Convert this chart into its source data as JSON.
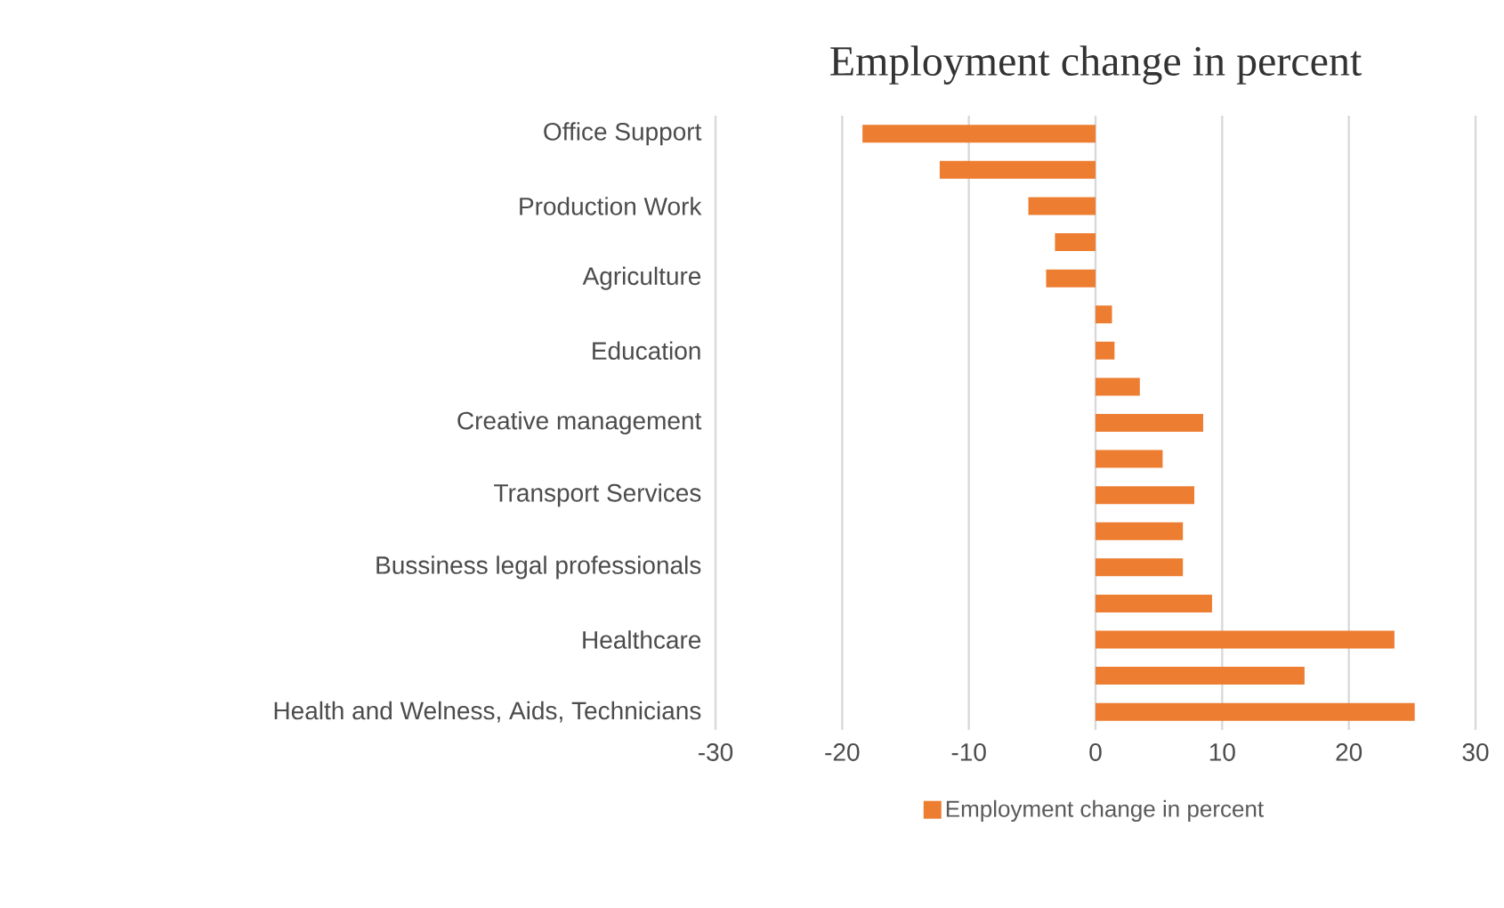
{
  "chart_data": {
    "type": "bar",
    "orientation": "horizontal",
    "title": "Employment  change in percent",
    "categories": [
      "Office Support",
      null,
      "Production Work",
      null,
      "Agriculture",
      null,
      "Education",
      null,
      "Creative management",
      null,
      "Transport Services",
      null,
      "Bussiness legal professionals",
      null,
      "Healthcare",
      null,
      "Health and Welness, Aids, Technicians"
    ],
    "series": [
      {
        "name": "Employment change in percent",
        "color": "#ed7d31",
        "values": [
          -18.4,
          -12.3,
          -5.3,
          -3.2,
          -3.9,
          1.3,
          1.5,
          3.5,
          8.5,
          5.3,
          7.8,
          6.9,
          6.9,
          9.2,
          23.6,
          16.5,
          25.2
        ]
      }
    ],
    "xlim": [
      -30,
      30
    ],
    "xticks": [
      -30,
      -20,
      -10,
      0,
      10,
      20,
      30
    ],
    "grid": "x",
    "legend": "bottom"
  }
}
